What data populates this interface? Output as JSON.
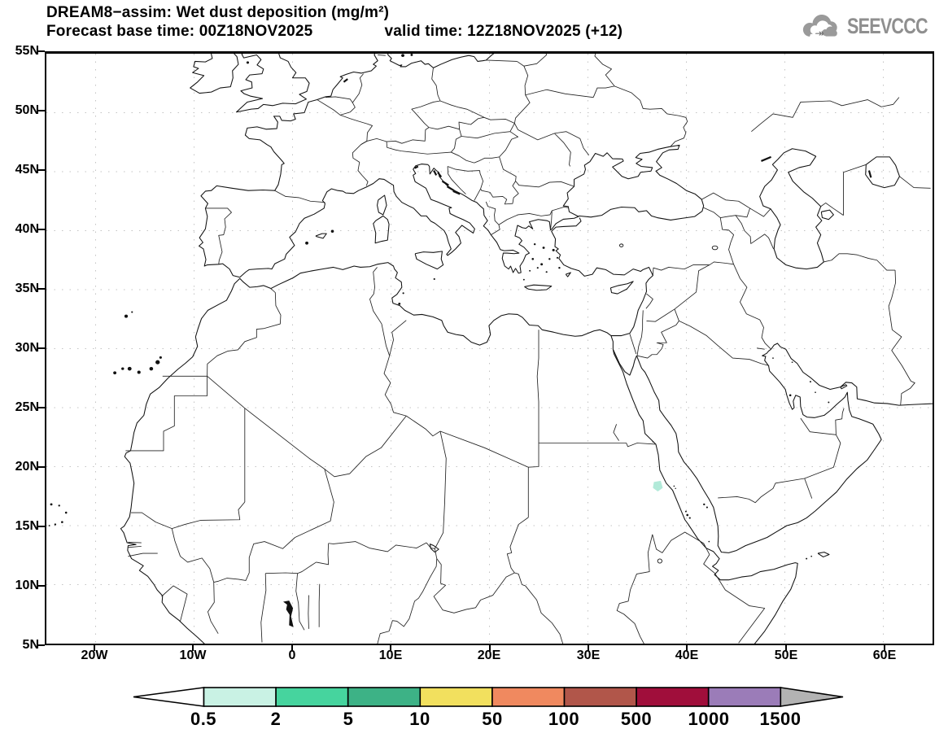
{
  "header": {
    "title": "DREAM8−assim: Wet dust deposition (mg/m²)",
    "forecast": "Forecast base time: 00Z18NOV2025",
    "valid": "valid time: 12Z18NOV2025 (+12)"
  },
  "logo": {
    "text": "SEEVCCC",
    "chevrons": "»"
  },
  "axes": {
    "lat_labels": [
      "55N",
      "50N",
      "45N",
      "40N",
      "35N",
      "30N",
      "25N",
      "20N",
      "15N",
      "10N",
      "5N"
    ],
    "lon_labels": [
      "20W",
      "10W",
      "0",
      "10E",
      "20E",
      "30E",
      "40E",
      "50E",
      "60E"
    ]
  },
  "colorbar": {
    "values": [
      "0.5",
      "2",
      "5",
      "10",
      "50",
      "100",
      "500",
      "1000",
      "1500"
    ],
    "segment_colors": [
      "#c9f2e4",
      "#46d49e",
      "#3db286",
      "#f2e05e",
      "#f0895f",
      "#b1564a",
      "#a00e3b",
      "#9b7cb8"
    ],
    "left_arrow_color": "#ffffff",
    "right_arrow_color": "#b3b3b3",
    "outline_color": "#000000"
  },
  "chart_data": {
    "type": "heatmap",
    "title": "DREAM8−assim: Wet dust deposition (mg/m²)",
    "model": "DREAM8-assim",
    "variable": "Wet dust deposition",
    "units": "mg/m²",
    "forecast_base_time": "00Z18NOV2025",
    "valid_time": "12Z18NOV2025",
    "lead_hours": 12,
    "projection": "lat-lon",
    "lon_range": [
      -25,
      65
    ],
    "lat_range": [
      5,
      55
    ],
    "grid": "dotted gridlines every 10 deg lon x 5 deg lat",
    "legend_position": "bottom",
    "scale_levels": [
      0.5,
      2,
      5,
      10,
      50,
      100,
      500,
      1000,
      1500
    ],
    "scale_colors": [
      "#c9f2e4",
      "#46d49e",
      "#3db286",
      "#f2e05e",
      "#f0895f",
      "#b1564a",
      "#a00e3b",
      "#9b7cb8"
    ],
    "data_points": [
      {
        "lon": 37.0,
        "lat": 18.4,
        "value_range": "0.5–2 mg/m²",
        "color": "#b2ead9",
        "note": "single small wet-deposition patch near the Sudanese Red Sea coast; rest of the domain shows no wet deposition"
      }
    ]
  }
}
